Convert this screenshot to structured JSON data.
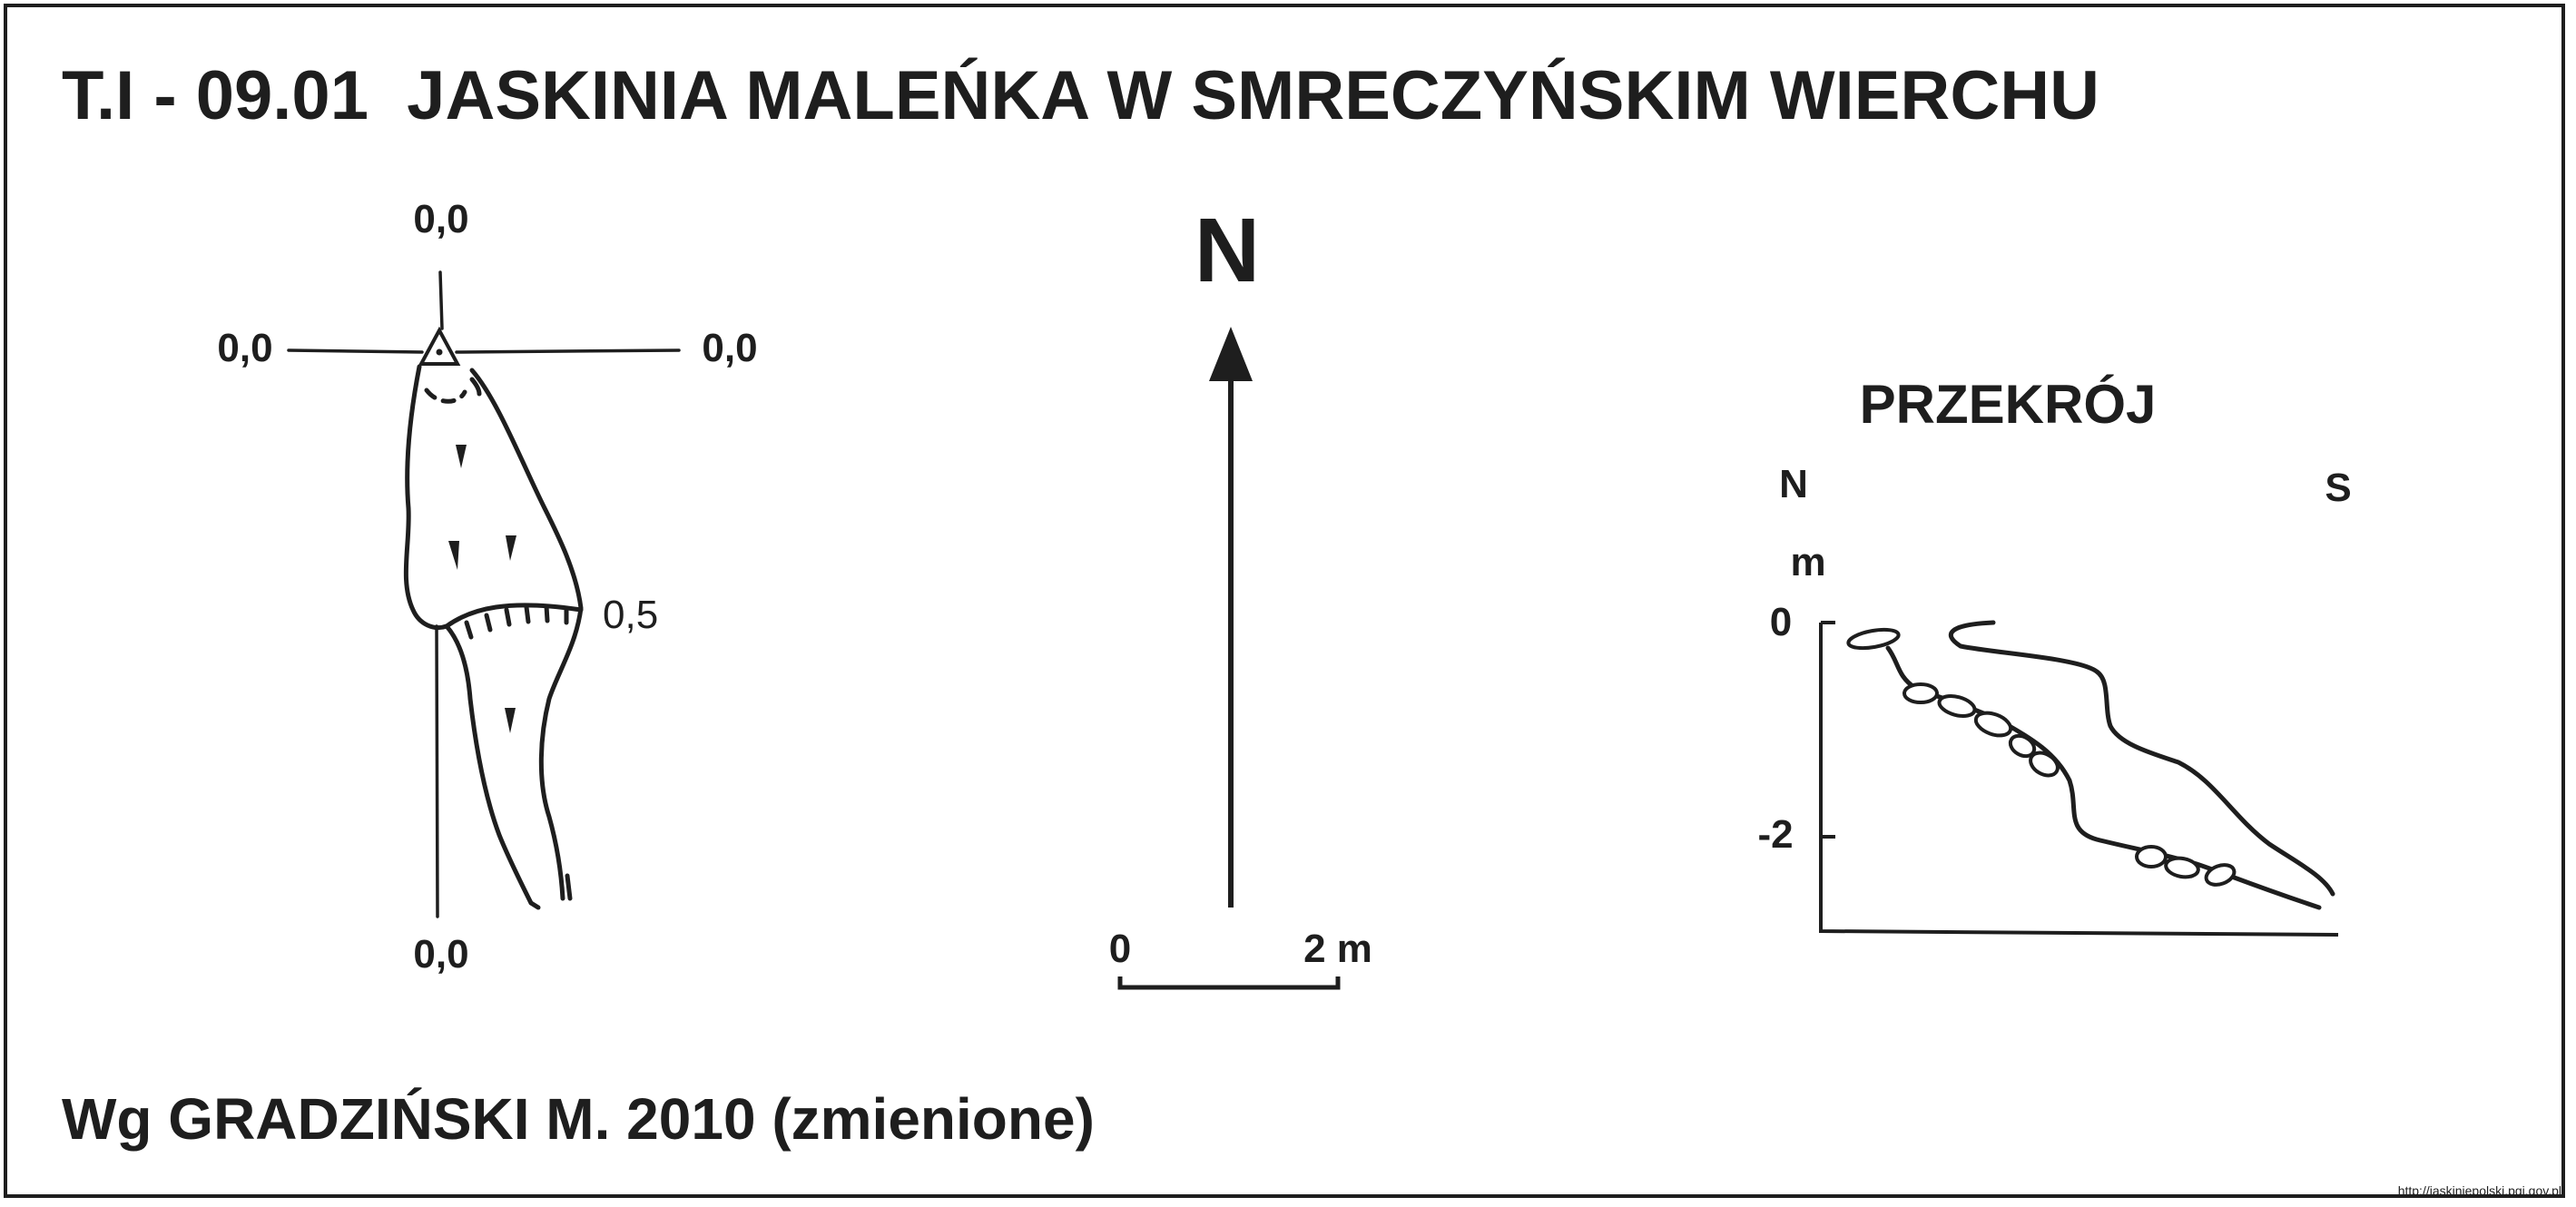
{
  "title": "T.I - 09.01  JASKINIA MALEŃKA W SMRECZYŃSKIM WIERCHU",
  "credit": "Wg GRADZIŃSKI M. 2010 (zmienione)",
  "url": "http://jaskiniepolski.pgi.gov.pl",
  "plan": {
    "label_top": "0,0",
    "label_left": "0,0",
    "label_right": "0,0",
    "label_bottom": "0,0",
    "label_depth": "0,5"
  },
  "north_arrow": {
    "label": "N"
  },
  "scale_bar": {
    "label_start": "0",
    "label_end": "2 m"
  },
  "section": {
    "title": "PRZEKRÓJ",
    "label_left_dir": "N",
    "label_right_dir": "S",
    "unit": "m",
    "tick_0": "0",
    "tick_minus2": "-2"
  }
}
